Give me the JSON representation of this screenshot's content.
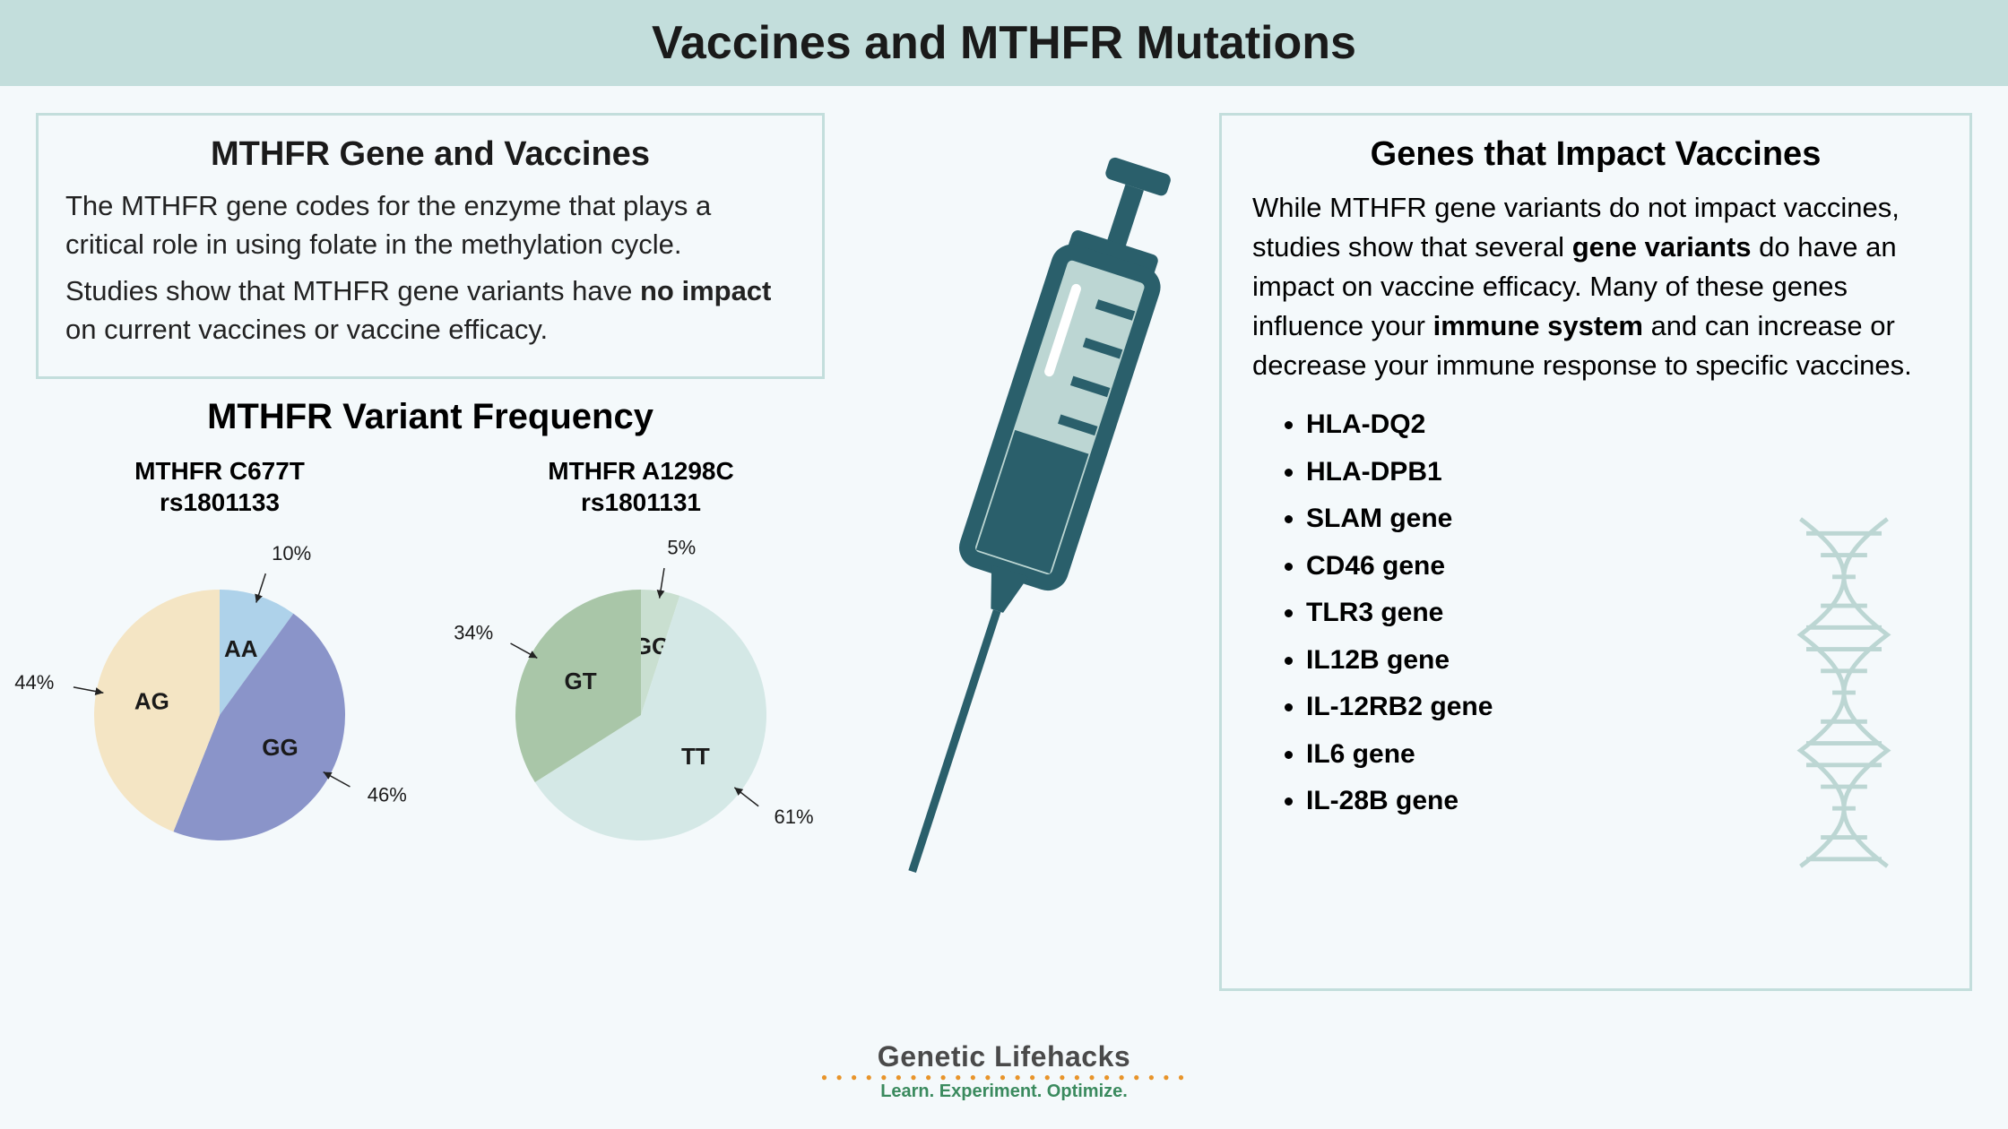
{
  "title": "Vaccines and MTHFR Mutations",
  "left_box": {
    "heading": "MTHFR Gene and Vaccines",
    "p1": "The MTHFR gene codes for the enzyme that plays a critical role in using folate in the methylation cycle.",
    "p2_a": "Studies show that MTHFR gene variants have ",
    "p2_bold": "no impact",
    "p2_b": " on current vaccines or vaccine efficacy."
  },
  "freq": {
    "heading": "MTHFR Variant Frequency",
    "pie1": {
      "title_line1": "MTHFR C677T",
      "title_line2": "rs1801133",
      "slices": [
        {
          "label": "AA",
          "pct": 10,
          "color": "#aed2ea",
          "pct_text": "10%"
        },
        {
          "label": "GG",
          "pct": 46,
          "color": "#8a94c9",
          "pct_text": "46%"
        },
        {
          "label": "AG",
          "pct": 44,
          "color": "#f4e5c4",
          "pct_text": "44%"
        }
      ],
      "radius": 140,
      "label_fontsize": 26,
      "pct_fontsize": 22
    },
    "pie2": {
      "title_line1": "MTHFR A1298C",
      "title_line2": "rs1801131",
      "slices": [
        {
          "label": "GG",
          "pct": 5,
          "color": "#c9dfd0",
          "pct_text": "5%"
        },
        {
          "label": "TT",
          "pct": 61,
          "color": "#d4e8e6",
          "pct_text": "61%"
        },
        {
          "label": "GT",
          "pct": 34,
          "color": "#a9c6a8",
          "pct_text": "34%"
        }
      ],
      "radius": 140,
      "label_fontsize": 26,
      "pct_fontsize": 22
    }
  },
  "right_box": {
    "heading": "Genes that Impact Vaccines",
    "p_a": "While MTHFR gene variants do not impact vaccines, studies show that several ",
    "p_bold1": "gene variants",
    "p_b": " do have an impact on vaccine efficacy. Many of these genes influence your ",
    "p_bold2": "immune system",
    "p_c": " and can increase or decrease your immune response to specific vaccines.",
    "genes": [
      "HLA-DQ2",
      "HLA-DPB1",
      "SLAM gene",
      "CD46 gene",
      "TLR3 gene",
      "IL12B gene",
      "IL-12RB2 gene",
      "IL6 gene",
      "IL-28B gene"
    ]
  },
  "logo": {
    "main": "Genetic Lifehacks",
    "tag": "Learn. Experiment. Optimize."
  },
  "colors": {
    "header_bg": "#c3dedc",
    "page_bg": "#f4f9fb",
    "box_border": "#c3dedc",
    "syringe_dark": "#2a5f6b",
    "syringe_light": "#bcd6d3",
    "dna_stroke": "#bcd6d3"
  }
}
